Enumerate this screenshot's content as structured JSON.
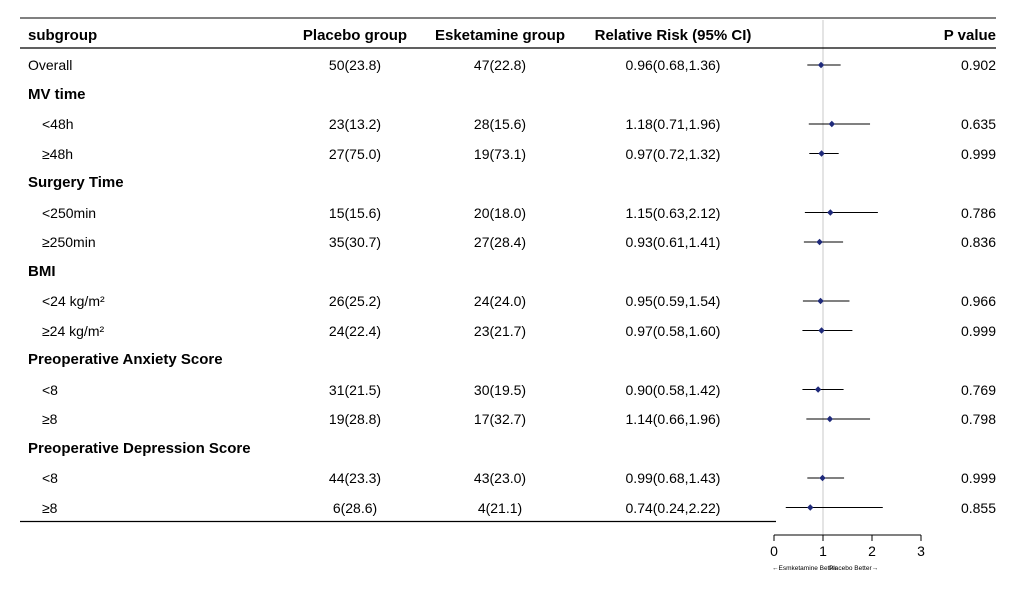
{
  "headers": {
    "subgroup": "subgroup",
    "placebo": "Placebo group",
    "esketamine": "Esketamine group",
    "rr": "Relative Risk (95% CI)",
    "p": "P value"
  },
  "rows": [
    {
      "kind": "data",
      "label": "Overall",
      "indent": false,
      "placebo": "50(23.8)",
      "esketamine": "47(22.8)",
      "rr_text": "0.96(0.68,1.36)",
      "p": "0.902"
    },
    {
      "kind": "group",
      "label": "MV time"
    },
    {
      "kind": "data",
      "label": "<48h",
      "indent": true,
      "placebo": "23(13.2)",
      "esketamine": "28(15.6)",
      "rr_text": "1.18(0.71,1.96)",
      "p": "0.635"
    },
    {
      "kind": "data",
      "label": "≥48h",
      "indent": true,
      "placebo": "27(75.0)",
      "esketamine": "19(73.1)",
      "rr_text": "0.97(0.72,1.32)",
      "p": "0.999"
    },
    {
      "kind": "group",
      "label": "Surgery Time"
    },
    {
      "kind": "data",
      "label": "<250min",
      "indent": true,
      "placebo": "15(15.6)",
      "esketamine": "20(18.0)",
      "rr_text": "1.15(0.63,2.12)",
      "p": "0.786"
    },
    {
      "kind": "data",
      "label": "≥250min",
      "indent": true,
      "placebo": "35(30.7)",
      "esketamine": "27(28.4)",
      "rr_text": "0.93(0.61,1.41)",
      "p": "0.836"
    },
    {
      "kind": "group",
      "label": "BMI"
    },
    {
      "kind": "data",
      "label": "<24 kg/m²",
      "indent": true,
      "placebo": "26(25.2)",
      "esketamine": "24(24.0)",
      "rr_text": "0.95(0.59,1.54)",
      "p": "0.966"
    },
    {
      "kind": "data",
      "label": "≥24 kg/m²",
      "indent": true,
      "placebo": "24(22.4)",
      "esketamine": "23(21.7)",
      "rr_text": "0.97(0.58,1.60)",
      "p": "0.999"
    },
    {
      "kind": "group",
      "label": "Preoperative Anxiety Score"
    },
    {
      "kind": "data",
      "label": "<8",
      "indent": true,
      "placebo": "31(21.5)",
      "esketamine": "30(19.5)",
      "rr_text": "0.90(0.58,1.42)",
      "p": "0.769"
    },
    {
      "kind": "data",
      "label": "≥8",
      "indent": true,
      "placebo": "19(28.8)",
      "esketamine": "17(32.7)",
      "rr_text": "1.14(0.66,1.96)",
      "p": "0.798"
    },
    {
      "kind": "group",
      "label": "Preoperative Depression Score"
    },
    {
      "kind": "data",
      "label": "<8",
      "indent": true,
      "placebo": "44(23.3)",
      "esketamine": "43(23.0)",
      "rr_text": "0.99(0.68,1.43)",
      "p": "0.999"
    },
    {
      "kind": "data",
      "label": "≥8",
      "indent": true,
      "placebo": "6(28.6)",
      "esketamine": "4(21.1)",
      "rr_text": "0.74(0.24,2.22)",
      "p": "0.855"
    }
  ],
  "chart_data": {
    "type": "scatter",
    "subtype": "forest",
    "xlim": [
      0,
      3
    ],
    "x_ticks": [
      "0",
      "1",
      "2",
      "3"
    ],
    "reference_line": 1,
    "direction_left": "←Esmketamine Better",
    "direction_right": "Placebo Better→",
    "point_color": "#1f2a7a",
    "reference_color": "#c8c8c8",
    "points": [
      {
        "label": "Overall",
        "rr": 0.96,
        "lo": 0.68,
        "hi": 1.36
      },
      {
        "label": "<48h",
        "rr": 1.18,
        "lo": 0.71,
        "hi": 1.96
      },
      {
        "label": "≥48h",
        "rr": 0.97,
        "lo": 0.72,
        "hi": 1.32
      },
      {
        "label": "<250min",
        "rr": 1.15,
        "lo": 0.63,
        "hi": 2.12
      },
      {
        "label": "≥250min",
        "rr": 0.93,
        "lo": 0.61,
        "hi": 1.41
      },
      {
        "label": "<24 kg/m²",
        "rr": 0.95,
        "lo": 0.59,
        "hi": 1.54
      },
      {
        "label": "≥24 kg/m²",
        "rr": 0.97,
        "lo": 0.58,
        "hi": 1.6
      },
      {
        "label": "<8",
        "rr": 0.9,
        "lo": 0.58,
        "hi": 1.42
      },
      {
        "label": "≥8",
        "rr": 1.14,
        "lo": 0.66,
        "hi": 1.96
      },
      {
        "label": "<8",
        "rr": 0.99,
        "lo": 0.68,
        "hi": 1.43
      },
      {
        "label": "≥8",
        "rr": 0.74,
        "lo": 0.24,
        "hi": 2.22
      }
    ]
  }
}
